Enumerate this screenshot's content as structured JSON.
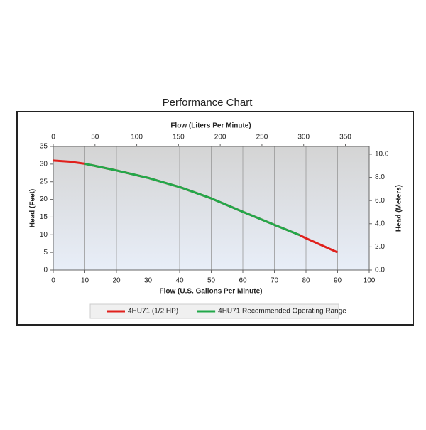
{
  "chart_data": {
    "type": "line",
    "title": "Performance Chart",
    "x_label": "Flow (U.S. Gallons Per Minute)",
    "x2_label": "Flow (Liters Per Minute)",
    "y_label": "Head (Feet)",
    "y2_label": "Head (Meters)",
    "x": [
      0,
      5,
      10,
      20,
      30,
      40,
      50,
      60,
      70,
      78,
      80,
      90
    ],
    "series": [
      {
        "name": "4HU71 (1/2 HP)",
        "color": "#e0201c",
        "values": [
          31,
          30.7,
          30.1,
          28.2,
          26.1,
          23.5,
          20.3,
          16.5,
          12.8,
          9.9,
          9.0,
          5.0
        ]
      },
      {
        "name": "4HU71 Recommended Operating Range",
        "color": "#22a84a",
        "values": [
          null,
          null,
          30.1,
          28.2,
          26.1,
          23.5,
          20.3,
          16.5,
          12.8,
          9.9,
          null,
          null
        ]
      }
    ],
    "xlim": [
      0,
      100
    ],
    "xticks": [
      0,
      10,
      20,
      30,
      40,
      50,
      60,
      70,
      80,
      90,
      100
    ],
    "x2lim": [
      0,
      378.5
    ],
    "x2ticks": [
      0,
      50,
      100,
      150,
      200,
      250,
      300,
      350
    ],
    "ylim": [
      0,
      35
    ],
    "yticks": [
      0,
      5,
      10,
      15,
      20,
      25,
      30,
      35
    ],
    "y2lim": [
      0,
      10.67
    ],
    "y2ticks": [
      {
        "value": 0,
        "label": "0.0"
      },
      {
        "value": 2,
        "label": "2.0"
      },
      {
        "value": 4,
        "label": "4.0"
      },
      {
        "value": 6,
        "label": "6.0"
      },
      {
        "value": 8,
        "label": "8.0"
      },
      {
        "value": 10,
        "label": "10.0"
      }
    ],
    "grid": true,
    "legend": "bottom"
  }
}
